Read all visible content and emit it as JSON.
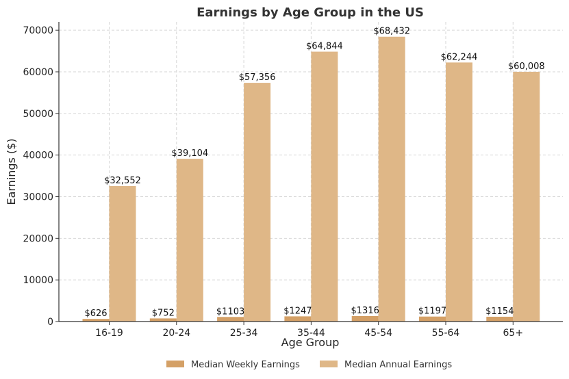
{
  "chart_data": {
    "type": "bar",
    "title": "Earnings by Age Group in the US",
    "xlabel": "Age Group",
    "ylabel": "Earnings ($)",
    "categories": [
      "16-19",
      "20-24",
      "25-34",
      "35-44",
      "45-54",
      "55-64",
      "65+"
    ],
    "series": [
      {
        "name": "Median Weekly Earnings",
        "color": "#d4a066",
        "values": [
          626,
          752,
          1103,
          1247,
          1316,
          1197,
          1154
        ],
        "labels": [
          "$626",
          "$752",
          "$1103",
          "$1247",
          "$1316",
          "$1197",
          "$1154"
        ]
      },
      {
        "name": "Median Annual Earnings",
        "color": "#dfb787",
        "values": [
          32552,
          39104,
          57356,
          64844,
          68432,
          62244,
          60008
        ],
        "labels": [
          "$32,552",
          "$39,104",
          "$57,356",
          "$64,844",
          "$68,432",
          "$62,244",
          "$60,008"
        ]
      }
    ],
    "ylim": [
      0,
      72000
    ],
    "yticks": [
      0,
      10000,
      20000,
      30000,
      40000,
      50000,
      60000,
      70000
    ],
    "ytick_labels": [
      "0",
      "10000",
      "20000",
      "30000",
      "40000",
      "50000",
      "60000",
      "70000"
    ],
    "grid": true,
    "legend": "bottom-center"
  }
}
